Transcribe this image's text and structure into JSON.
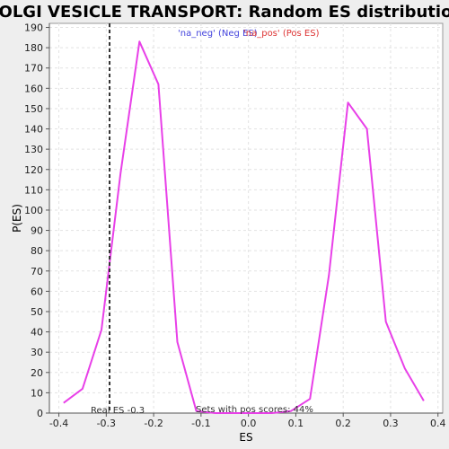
{
  "chart_data": {
    "type": "line",
    "title": "GOLGI VESICLE TRANSPORT: Random ES distribution",
    "xlabel": "ES",
    "ylabel": "P(ES)",
    "xlim": [
      -0.42,
      0.41
    ],
    "ylim": [
      0,
      192
    ],
    "xticks": [
      -0.4,
      -0.3,
      -0.2,
      -0.1,
      0.0,
      0.1,
      0.2,
      0.3,
      0.4
    ],
    "xtick_labels": [
      "-0.4",
      "-0.3",
      "-0.2",
      "-0.1",
      "0.0",
      "0.1",
      "0.2",
      "0.3",
      "0.4"
    ],
    "yticks": [
      0,
      10,
      20,
      30,
      40,
      50,
      60,
      70,
      80,
      90,
      100,
      110,
      120,
      130,
      140,
      150,
      160,
      170,
      180,
      190
    ],
    "grid": true,
    "series": [
      {
        "color": "#e840e8",
        "x": [
          -0.39,
          -0.35,
          -0.31,
          -0.27,
          -0.23,
          -0.19,
          -0.15,
          -0.11,
          -0.07,
          -0.03,
          0.01,
          0.05,
          0.09,
          0.13,
          0.17,
          0.21,
          0.25,
          0.29,
          0.33,
          0.37
        ],
        "y": [
          5,
          12,
          41,
          118,
          183,
          162,
          35,
          1,
          0,
          0,
          0,
          0,
          1,
          7,
          68,
          153,
          140,
          45,
          22,
          6
        ]
      }
    ],
    "vline": {
      "x": -0.293,
      "color": "#333333",
      "style": "dashed"
    },
    "legend": {
      "placement": "top-center",
      "entries": [
        {
          "label": "'na_neg' (Neg ES)",
          "color": "#4444dd"
        },
        {
          "label": "'na_pos' (Pos ES)",
          "color": "#dd3333"
        }
      ]
    },
    "annotations": {
      "real_es": "Real ES -0.3",
      "pos_scores": "Sets with pos scores: 44%"
    }
  }
}
